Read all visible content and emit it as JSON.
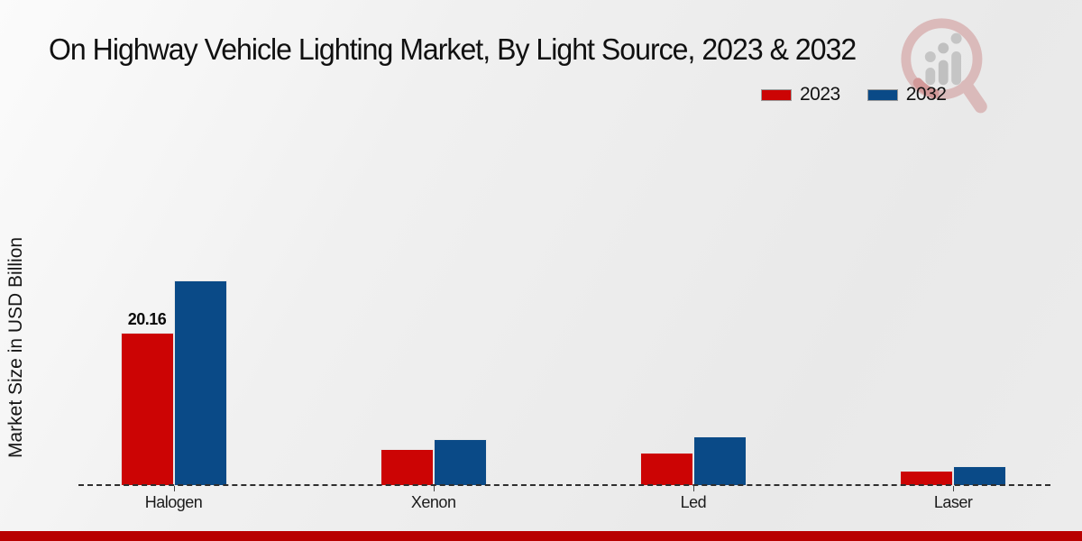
{
  "header": {
    "title": "On Highway Vehicle Lighting Market, By Light Source, 2023 & 2032"
  },
  "watermark": {
    "icon": "magnifier-bar-chart-logo",
    "ring_color": "#c36b6b",
    "bars_color": "#8f8f8f"
  },
  "colors": {
    "series_2023": "#cc0404",
    "series_2032": "#0a4a87",
    "bottom_strip": "#b80000",
    "baseline": "#2e2e2e"
  },
  "chart_data": {
    "type": "bar",
    "title": "On Highway Vehicle Lighting Market, By Light Source, 2023 & 2032",
    "xlabel": "",
    "ylabel": "Market Size in USD Billion",
    "categories": [
      "Halogen",
      "Xenon",
      "Led",
      "Laser"
    ],
    "series": [
      {
        "name": "2023",
        "color": "#cc0404",
        "values": [
          20.16,
          4.8,
          4.3,
          1.9
        ]
      },
      {
        "name": "2032",
        "color": "#0a4a87",
        "values": [
          27.1,
          6.1,
          6.4,
          2.5
        ]
      }
    ],
    "bar_labels": [
      {
        "series": "2023",
        "category": "Halogen",
        "text": "20.16"
      }
    ],
    "ylim": [
      0,
      32
    ],
    "grid": false,
    "legend_position": "top-right",
    "baseline_style": "dashed",
    "y_axis_ticks_visible": false
  }
}
